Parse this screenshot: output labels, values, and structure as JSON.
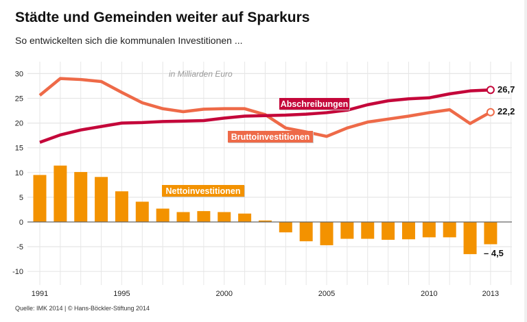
{
  "title": "Städte und Gemeinden weiter auf Sparkurs",
  "subtitle": "So entwickelten sich die kommunalen Investitionen ...",
  "source": "Quelle: IMK 2014 | © Hans-Böckler-Stiftung 2014",
  "chart_data": {
    "type": "bar+line",
    "unit_note": "in Milliarden Euro",
    "x": [
      1991,
      1992,
      1993,
      1994,
      1995,
      1996,
      1997,
      1998,
      1999,
      2000,
      2001,
      2002,
      2003,
      2004,
      2005,
      2006,
      2007,
      2008,
      2009,
      2010,
      2011,
      2012,
      2013
    ],
    "x_tick_labels": [
      "1991",
      "1995",
      "2000",
      "2005",
      "2010",
      "2013"
    ],
    "y_tick_labels": [
      "30",
      "25",
      "20",
      "15",
      "10",
      "5",
      "0",
      "-5",
      "-10"
    ],
    "ylim": [
      -12,
      32
    ],
    "grid": true,
    "series": [
      {
        "name": "Abschreibungen",
        "type": "line",
        "color": "#c4073a",
        "values": [
          16.1,
          17.6,
          18.6,
          19.3,
          20.0,
          20.1,
          20.3,
          20.4,
          20.5,
          21.0,
          21.4,
          21.5,
          21.6,
          21.8,
          22.1,
          22.6,
          23.7,
          24.5,
          24.9,
          25.1,
          25.9,
          26.5,
          26.7
        ],
        "end_label": "26,7"
      },
      {
        "name": "Bruttoinvestitionen",
        "type": "line",
        "color": "#ee6a48",
        "values": [
          25.6,
          29.0,
          28.8,
          28.4,
          26.2,
          24.1,
          22.9,
          22.3,
          22.8,
          22.9,
          22.9,
          21.7,
          19.0,
          18.2,
          17.3,
          19.0,
          20.2,
          20.8,
          21.4,
          22.1,
          22.7,
          19.9,
          22.2
        ],
        "end_label": "22,2"
      },
      {
        "name": "Nettoinvestitionen",
        "type": "bar",
        "color": "#f39200",
        "values": [
          9.5,
          11.4,
          10.1,
          9.1,
          6.2,
          4.1,
          2.7,
          2.0,
          2.2,
          2.0,
          1.7,
          0.3,
          -2.1,
          -3.9,
          -4.7,
          -3.4,
          -3.4,
          -3.6,
          -3.5,
          -3.1,
          -3.1,
          -6.5,
          -4.5
        ],
        "end_label": "– 4,5"
      }
    ]
  }
}
